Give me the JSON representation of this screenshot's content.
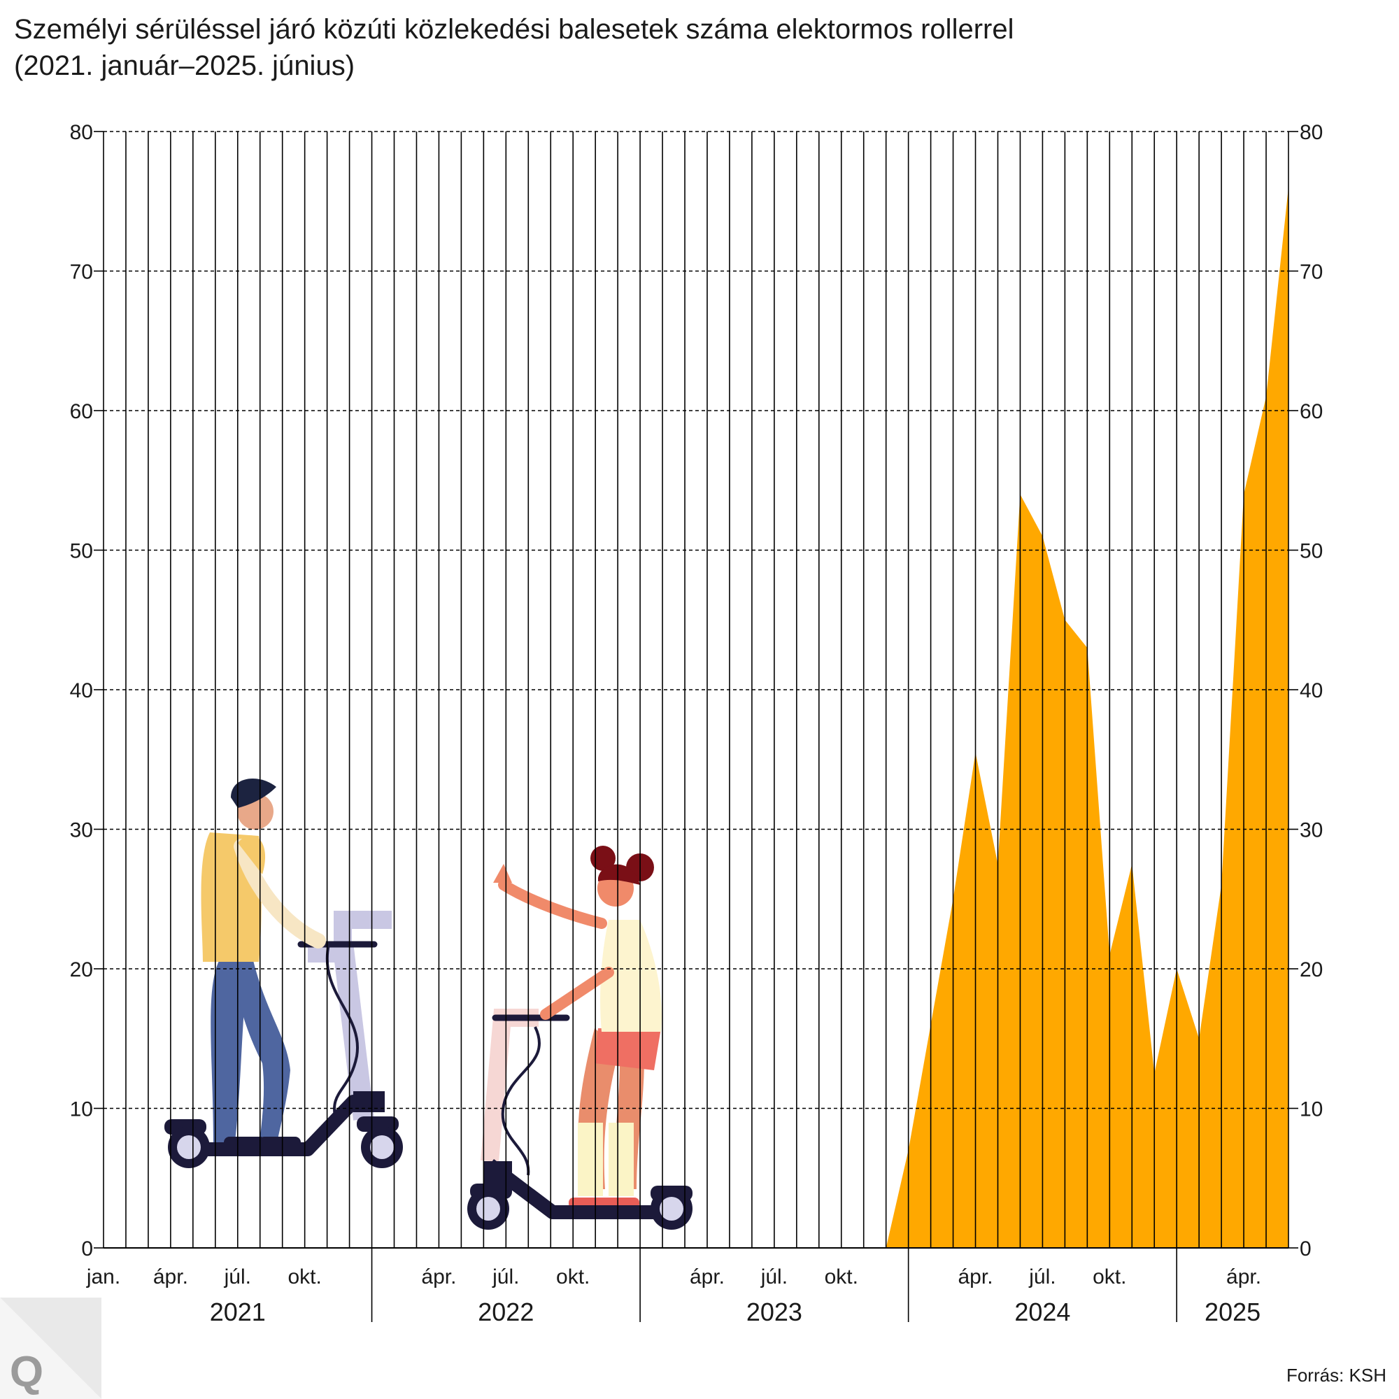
{
  "title": {
    "line1": "Személyi sérüléssel járó közúti közlekedési balesetek száma elektormos rollerrel",
    "line2": "(2021. január–2025. június)"
  },
  "source": "Forrás: KSH",
  "logo": {
    "letter": "Q"
  },
  "colors": {
    "area": "#FFA800",
    "grid": "#000000",
    "text": "#1a1a1a"
  },
  "illustration": {
    "description_icons": [
      "boy-on-scooter-illustration",
      "girl-on-scooter-illustration"
    ]
  },
  "chart_data": {
    "type": "area",
    "ylim": [
      0,
      80
    ],
    "yticks": [
      "0",
      "10",
      "20",
      "30",
      "40",
      "50",
      "60",
      "70",
      "80"
    ],
    "grid": "horizontal dashed, vertical solid per month",
    "months_total": 54,
    "month_tick_labels": [
      {
        "month_index": 0,
        "label": "jan."
      },
      {
        "month_index": 3,
        "label": "ápr."
      },
      {
        "month_index": 6,
        "label": "júl."
      },
      {
        "month_index": 9,
        "label": "okt."
      },
      {
        "month_index": 15,
        "label": "ápr."
      },
      {
        "month_index": 18,
        "label": "júl."
      },
      {
        "month_index": 21,
        "label": "okt."
      },
      {
        "month_index": 27,
        "label": "ápr."
      },
      {
        "month_index": 30,
        "label": "júl."
      },
      {
        "month_index": 33,
        "label": "okt."
      },
      {
        "month_index": 39,
        "label": "ápr."
      },
      {
        "month_index": 42,
        "label": "júl."
      },
      {
        "month_index": 45,
        "label": "okt."
      },
      {
        "month_index": 51,
        "label": "ápr."
      }
    ],
    "years": [
      {
        "label": "2021",
        "start": 0,
        "end": 12
      },
      {
        "label": "2022",
        "start": 12,
        "end": 24
      },
      {
        "label": "2023",
        "start": 24,
        "end": 36
      },
      {
        "label": "2024",
        "start": 36,
        "end": 48
      },
      {
        "label": "2025",
        "start": 48,
        "end": 54
      }
    ],
    "series": [
      {
        "values": [
          null,
          null,
          null,
          null,
          null,
          null,
          null,
          null,
          null,
          null,
          null,
          null,
          null,
          null,
          null,
          null,
          null,
          null,
          null,
          null,
          null,
          null,
          null,
          null,
          null,
          null,
          null,
          null,
          null,
          null,
          null,
          null,
          null,
          null,
          null,
          0,
          7,
          16,
          25,
          35.5,
          27.5,
          54,
          51,
          45,
          43,
          21,
          27.5,
          12.5,
          20,
          15,
          26,
          54,
          61,
          76
        ]
      }
    ]
  }
}
